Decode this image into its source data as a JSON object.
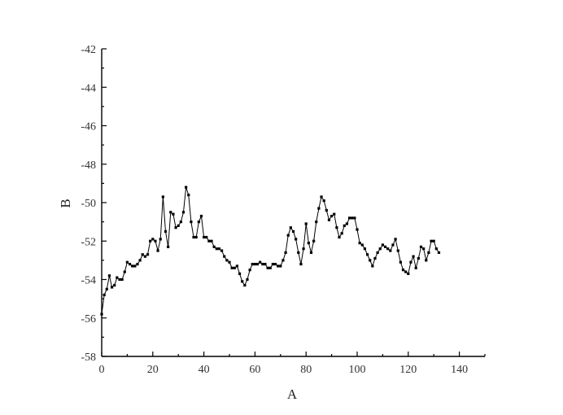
{
  "chart_data": {
    "type": "line",
    "title": "",
    "xlabel": "A",
    "ylabel": "B",
    "xlim": [
      0,
      150
    ],
    "ylim": [
      -58,
      -42
    ],
    "xticks": [
      0,
      20,
      40,
      60,
      80,
      100,
      120,
      140
    ],
    "yticks": [
      -58,
      -56,
      -54,
      -52,
      -50,
      -48,
      -46,
      -44,
      -42
    ],
    "xtick_labels": [
      "0",
      "20",
      "40",
      "60",
      "80",
      "100",
      "120",
      "140"
    ],
    "ytick_labels": [
      "-58",
      "-56",
      "-54",
      "-52",
      "-50",
      "-48",
      "-46",
      "-44",
      "-42"
    ],
    "grid": false,
    "legend": "none",
    "marker": "square",
    "line_color": "#000000",
    "series": [
      {
        "x": [
          0,
          1,
          2,
          3,
          4,
          5,
          6,
          7,
          8,
          9,
          10,
          11,
          12,
          13,
          14,
          15,
          16,
          17,
          18,
          19,
          20,
          21,
          22,
          23,
          24,
          25,
          26,
          27,
          28,
          29,
          30,
          31,
          32,
          33,
          34,
          35,
          36,
          37,
          38,
          39,
          40,
          41,
          42,
          43,
          44,
          45,
          46,
          47,
          48,
          49,
          50,
          51,
          52,
          53,
          54,
          55,
          56,
          57,
          58,
          59,
          60,
          61,
          62,
          63,
          64,
          65,
          66,
          67,
          68,
          69,
          70,
          71,
          72,
          73,
          74,
          75,
          76,
          77,
          78,
          79,
          80,
          81,
          82,
          83,
          84,
          85,
          86,
          87,
          88,
          89,
          90,
          91,
          92,
          93,
          94,
          95,
          96,
          97,
          98,
          99,
          100,
          101,
          102,
          103,
          104,
          105,
          106,
          107,
          108,
          109,
          110,
          111,
          112,
          113,
          114,
          115,
          116,
          117,
          118,
          119,
          120,
          121,
          122,
          123,
          124,
          125,
          126,
          127,
          128,
          129,
          130,
          131,
          132
        ],
        "values": [
          -55.8,
          -54.8,
          -54.5,
          -53.8,
          -54.4,
          -54.3,
          -53.9,
          -54.0,
          -54.0,
          -53.6,
          -53.1,
          -53.2,
          -53.3,
          -53.3,
          -53.2,
          -53.0,
          -52.7,
          -52.8,
          -52.7,
          -52.0,
          -51.9,
          -52.0,
          -52.5,
          -51.9,
          -49.7,
          -51.5,
          -52.3,
          -50.5,
          -50.6,
          -51.3,
          -51.2,
          -51.0,
          -50.5,
          -49.2,
          -49.6,
          -51.0,
          -51.8,
          -51.8,
          -51.0,
          -50.7,
          -51.8,
          -51.8,
          -52.0,
          -52.0,
          -52.3,
          -52.4,
          -52.4,
          -52.5,
          -52.8,
          -53.0,
          -53.1,
          -53.4,
          -53.4,
          -53.3,
          -53.7,
          -54.1,
          -54.3,
          -54.0,
          -53.5,
          -53.2,
          -53.2,
          -53.2,
          -53.1,
          -53.2,
          -53.2,
          -53.4,
          -53.4,
          -53.2,
          -53.2,
          -53.3,
          -53.3,
          -53.0,
          -52.6,
          -51.7,
          -51.3,
          -51.5,
          -51.9,
          -52.6,
          -53.2,
          -52.4,
          -51.1,
          -52.1,
          -52.6,
          -52.0,
          -51.0,
          -50.3,
          -49.7,
          -49.9,
          -50.4,
          -50.9,
          -50.7,
          -50.6,
          -51.3,
          -51.8,
          -51.6,
          -51.2,
          -51.1,
          -50.8,
          -50.8,
          -50.8,
          -51.4,
          -52.1,
          -52.2,
          -52.4,
          -52.7,
          -53.0,
          -53.3,
          -52.9,
          -52.6,
          -52.4,
          -52.2,
          -52.3,
          -52.4,
          -52.5,
          -52.2,
          -51.9,
          -52.5,
          -53.1,
          -53.5,
          -53.6,
          -53.7,
          -53.1,
          -52.8,
          -53.4,
          -52.9,
          -52.3,
          -52.4,
          -53.0,
          -52.6,
          -52.0,
          -52.0,
          -52.4,
          -52.6
        ]
      }
    ]
  }
}
